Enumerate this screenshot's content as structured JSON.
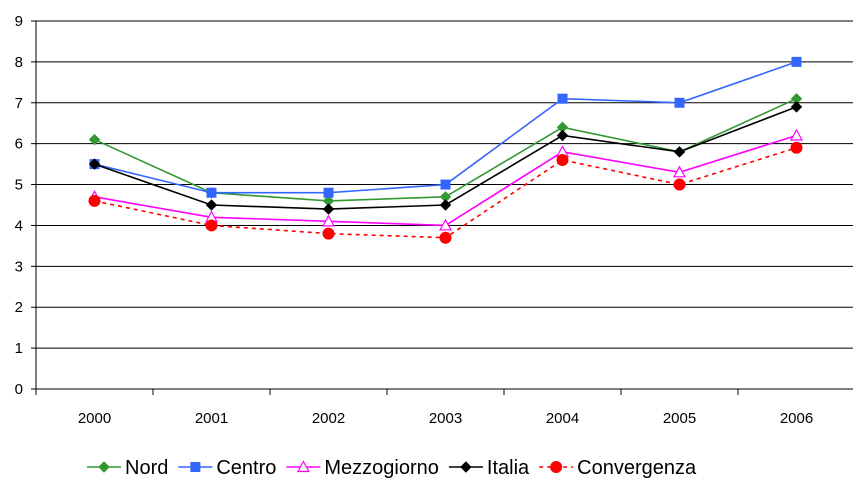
{
  "chart_data": {
    "type": "line",
    "title": "",
    "xlabel": "",
    "ylabel": "",
    "categories": [
      "2000",
      "2001",
      "2002",
      "2003",
      "2004",
      "2005",
      "2006"
    ],
    "ylim": [
      0,
      9
    ],
    "yticks": [
      "0",
      "1",
      "2",
      "3",
      "4",
      "5",
      "6",
      "7",
      "8",
      "9"
    ],
    "grid": "horizontal",
    "legend_position": "bottom",
    "series": [
      {
        "name": "Nord",
        "values": [
          6.1,
          4.8,
          4.6,
          4.7,
          6.4,
          5.8,
          7.1
        ],
        "color": "#339933",
        "marker": "diamond",
        "dash": "solid"
      },
      {
        "name": "Centro",
        "values": [
          5.5,
          4.8,
          4.8,
          5.0,
          7.1,
          7.0,
          8.0
        ],
        "color": "#3366ff",
        "marker": "square",
        "dash": "solid"
      },
      {
        "name": "Mezzogiorno",
        "values": [
          4.7,
          4.2,
          4.1,
          4.0,
          5.8,
          5.3,
          6.2
        ],
        "color": "#ff00ff",
        "marker": "triangle-open",
        "dash": "solid"
      },
      {
        "name": "Italia",
        "values": [
          5.5,
          4.5,
          4.4,
          4.5,
          6.2,
          5.8,
          6.9
        ],
        "color": "#000000",
        "marker": "diamond",
        "dash": "solid"
      },
      {
        "name": "Convergenza",
        "values": [
          4.6,
          4.0,
          3.8,
          3.7,
          5.6,
          5.0,
          5.9
        ],
        "color": "#ff0000",
        "marker": "circle",
        "dash": "dashed"
      }
    ]
  }
}
